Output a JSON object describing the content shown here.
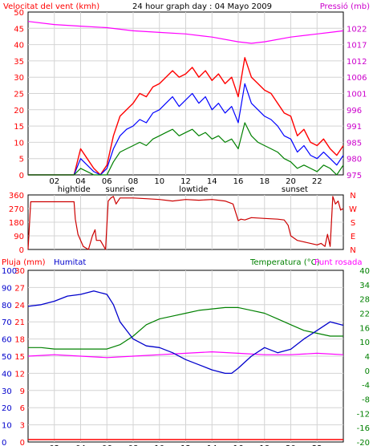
{
  "panel1": {
    "left_label": "Velocitat del vent (kmh)",
    "title": "24 hour graph day : 04 Mayo 2009",
    "right_label": "Pressió (mb)",
    "left_ticks": [
      "0",
      "5",
      "10",
      "15",
      "20",
      "25",
      "30",
      "35",
      "40",
      "45",
      "50"
    ],
    "right_ticks": [
      "975",
      "980",
      "985",
      "991",
      "996",
      "1001",
      "1006",
      "1012",
      "1017",
      "1022"
    ]
  },
  "panel2": {
    "left_ticks": [
      "0",
      "90",
      "180",
      "270",
      "360"
    ],
    "right_letters": [
      "N",
      "W",
      "S",
      "E",
      "N"
    ]
  },
  "panel3": {
    "rain_label": "Pluja (mm)",
    "humidity_label": "Humitat",
    "temp_label": "Temperatura (°C)",
    "dew_label": "Punt rosada",
    "rain_ticks": [
      "0",
      "3",
      "6",
      "9",
      "12",
      "15",
      "18",
      "21",
      "24",
      "27",
      "30"
    ],
    "humidity_ticks": [
      "0",
      "10",
      "20",
      "30",
      "40",
      "50",
      "60",
      "70",
      "80",
      "90",
      "100"
    ],
    "temp_ticks": [
      "-20",
      "-16",
      "-12",
      "-8",
      "-4",
      "0",
      "4",
      "10",
      "16",
      "22",
      "28",
      "34",
      "40"
    ]
  },
  "x_ticks": [
    "02",
    "04",
    "06",
    "08",
    "10",
    "12",
    "14",
    "16",
    "18",
    "20",
    "22"
  ],
  "events": {
    "hightide": "hightide",
    "sunrise": "sunrise",
    "lowtide": "lowtide",
    "sunset": "sunset"
  },
  "colors": {
    "wind_gust": "#ff0000",
    "wind_avg": "#0000ff",
    "wind_min": "#008000",
    "pressure": "#ff00ff",
    "direction": "#cc0000",
    "humidity": "#0000cc",
    "temperature": "#008000",
    "dew_point": "#ff00ff",
    "rain": "#ff0000",
    "left_axis": "#ff0000",
    "right_axis_top": "#cc00cc",
    "right_axis_bottom": "#008000"
  },
  "chart_data": [
    {
      "type": "line",
      "title": "24 hour graph day : 04 Mayo 2009",
      "x_unit": "hour",
      "xlim": [
        0,
        24
      ],
      "ylim": [
        0,
        50
      ],
      "y2lim": [
        975,
        1027
      ],
      "series": [
        {
          "name": "Velocitat del vent (kmh)",
          "axis": "left",
          "x": [
            0,
            1,
            2,
            3,
            3.5,
            4,
            4.5,
            5,
            5.5,
            6,
            6.5,
            7,
            7.5,
            8,
            8.5,
            9,
            9.5,
            10,
            10.5,
            11,
            11.5,
            12,
            12.5,
            13,
            13.5,
            14,
            14.5,
            15,
            15.5,
            16,
            16.5,
            17,
            17.5,
            18,
            18.5,
            19,
            19.5,
            20,
            20.5,
            21,
            21.5,
            22,
            22.5,
            23,
            23.5,
            24
          ],
          "y": [
            0,
            0,
            0,
            0,
            0,
            8,
            5,
            2,
            0,
            3,
            12,
            18,
            20,
            22,
            25,
            24,
            27,
            28,
            30,
            32,
            30,
            31,
            33,
            30,
            32,
            29,
            31,
            28,
            30,
            24,
            36,
            30,
            28,
            26,
            25,
            22,
            19,
            18,
            12,
            14,
            10,
            9,
            11,
            8,
            6,
            9
          ]
        },
        {
          "name": "",
          "axis": "left",
          "x": [
            0,
            1,
            2,
            3,
            3.5,
            4,
            4.5,
            5,
            5.5,
            6,
            6.5,
            7,
            7.5,
            8,
            8.5,
            9,
            9.5,
            10,
            10.5,
            11,
            11.5,
            12,
            12.5,
            13,
            13.5,
            14,
            14.5,
            15,
            15.5,
            16,
            16.5,
            17,
            17.5,
            18,
            18.5,
            19,
            19.5,
            20,
            20.5,
            21,
            21.5,
            22,
            22.5,
            23,
            23.5,
            24
          ],
          "y": [
            0,
            0,
            0,
            0,
            0,
            5,
            3,
            1,
            0,
            2,
            8,
            12,
            14,
            15,
            17,
            16,
            19,
            20,
            22,
            24,
            21,
            23,
            25,
            22,
            24,
            20,
            22,
            19,
            21,
            16,
            28,
            22,
            20,
            18,
            17,
            15,
            12,
            11,
            7,
            9,
            6,
            5,
            7,
            5,
            3,
            6
          ]
        },
        {
          "name": "",
          "axis": "left",
          "x": [
            0,
            1,
            2,
            3,
            3.5,
            4,
            4.5,
            5,
            5.5,
            6,
            6.5,
            7,
            7.5,
            8,
            8.5,
            9,
            9.5,
            10,
            10.5,
            11,
            11.5,
            12,
            12.5,
            13,
            13.5,
            14,
            14.5,
            15,
            15.5,
            16,
            16.5,
            17,
            17.5,
            18,
            18.5,
            19,
            19.5,
            20,
            20.5,
            21,
            21.5,
            22,
            22.5,
            23,
            23.5,
            24
          ],
          "y": [
            0,
            0,
            0,
            0,
            0,
            2,
            1,
            0,
            0,
            0,
            4,
            7,
            8,
            9,
            10,
            9,
            11,
            12,
            13,
            14,
            12,
            13,
            14,
            12,
            13,
            11,
            12,
            10,
            11,
            8,
            16,
            12,
            10,
            9,
            8,
            7,
            5,
            4,
            2,
            3,
            2,
            1,
            3,
            2,
            0,
            3
          ]
        },
        {
          "name": "Pressió (mb)",
          "axis": "right",
          "x": [
            0,
            2,
            4,
            6,
            8,
            10,
            12,
            14,
            16,
            17,
            18,
            20,
            22,
            23,
            24
          ],
          "y": [
            1024,
            1023,
            1022.5,
            1022,
            1021,
            1020.5,
            1020,
            1019,
            1017.5,
            1017,
            1017.5,
            1019,
            1020,
            1020.5,
            1021
          ]
        }
      ]
    },
    {
      "type": "line",
      "x_unit": "hour",
      "xlim": [
        0,
        24
      ],
      "ylim": [
        0,
        360
      ],
      "series": [
        {
          "name": "",
          "x": [
            0,
            0.2,
            3.5,
            3.6,
            3.8,
            4.2,
            4.4,
            4.6,
            4.9,
            5.1,
            5.2,
            5.5,
            5.9,
            6.1,
            6.3,
            6.5,
            6.7,
            7,
            8,
            9,
            10,
            11,
            12,
            13,
            14,
            15,
            15.6,
            16,
            16.2,
            16.5,
            17,
            18,
            19,
            19.5,
            19.8,
            20,
            20.5,
            21,
            21.5,
            22,
            22.3,
            22.6,
            22.8,
            23,
            23.2,
            23.4,
            23.6,
            23.8,
            24
          ],
          "y": [
            0,
            315,
            315,
            200,
            100,
            20,
            10,
            0,
            90,
            130,
            60,
            60,
            0,
            320,
            340,
            350,
            300,
            340,
            340,
            335,
            330,
            320,
            330,
            325,
            330,
            320,
            300,
            190,
            200,
            195,
            210,
            205,
            200,
            195,
            160,
            90,
            60,
            50,
            40,
            30,
            40,
            20,
            100,
            20,
            350,
            300,
            320,
            260,
            270
          ]
        }
      ]
    },
    {
      "type": "line",
      "x_unit": "hour",
      "xlim": [
        0,
        24
      ],
      "ylim": [
        0,
        100
      ],
      "y2lim": [
        -20,
        40
      ],
      "series": [
        {
          "name": "Humitat",
          "axis": "humidity",
          "x": [
            0,
            1,
            2,
            3,
            4,
            5,
            6,
            6.5,
            7,
            7.5,
            8,
            9,
            10,
            11,
            12,
            13,
            14,
            15,
            15.5,
            16,
            17,
            18,
            19,
            20,
            21,
            22,
            23,
            24
          ],
          "y": [
            79,
            80,
            82,
            85,
            86,
            88,
            86,
            80,
            70,
            65,
            60,
            56,
            55,
            52,
            48,
            45,
            42,
            40,
            40,
            43,
            50,
            55,
            52,
            54,
            60,
            65,
            70,
            68
          ]
        },
        {
          "name": "Temperatura (°C)",
          "axis": "temp",
          "x": [
            0,
            1,
            2,
            3,
            4,
            5,
            6,
            7,
            8,
            9,
            10,
            11,
            12,
            13,
            14,
            15,
            16,
            17,
            18,
            19,
            20,
            21,
            22,
            23,
            24
          ],
          "y": [
            13,
            13,
            12.5,
            12.5,
            12.5,
            12.5,
            12.5,
            14,
            17,
            21,
            23,
            24,
            25,
            26,
            26.5,
            27,
            27,
            26,
            25,
            23,
            21,
            19,
            18,
            17,
            17
          ]
        },
        {
          "name": "Punt rosada",
          "axis": "temp",
          "x": [
            0,
            2,
            4,
            6,
            8,
            10,
            12,
            14,
            16,
            18,
            20,
            22,
            24
          ],
          "y": [
            10,
            10.5,
            10,
            9.5,
            10,
            10.5,
            11,
            11.5,
            11,
            10.5,
            10.5,
            11,
            10.5
          ]
        },
        {
          "name": "Pluja (mm)",
          "axis": "rain",
          "x": [
            0,
            24
          ],
          "y": [
            0,
            0
          ]
        }
      ]
    }
  ]
}
